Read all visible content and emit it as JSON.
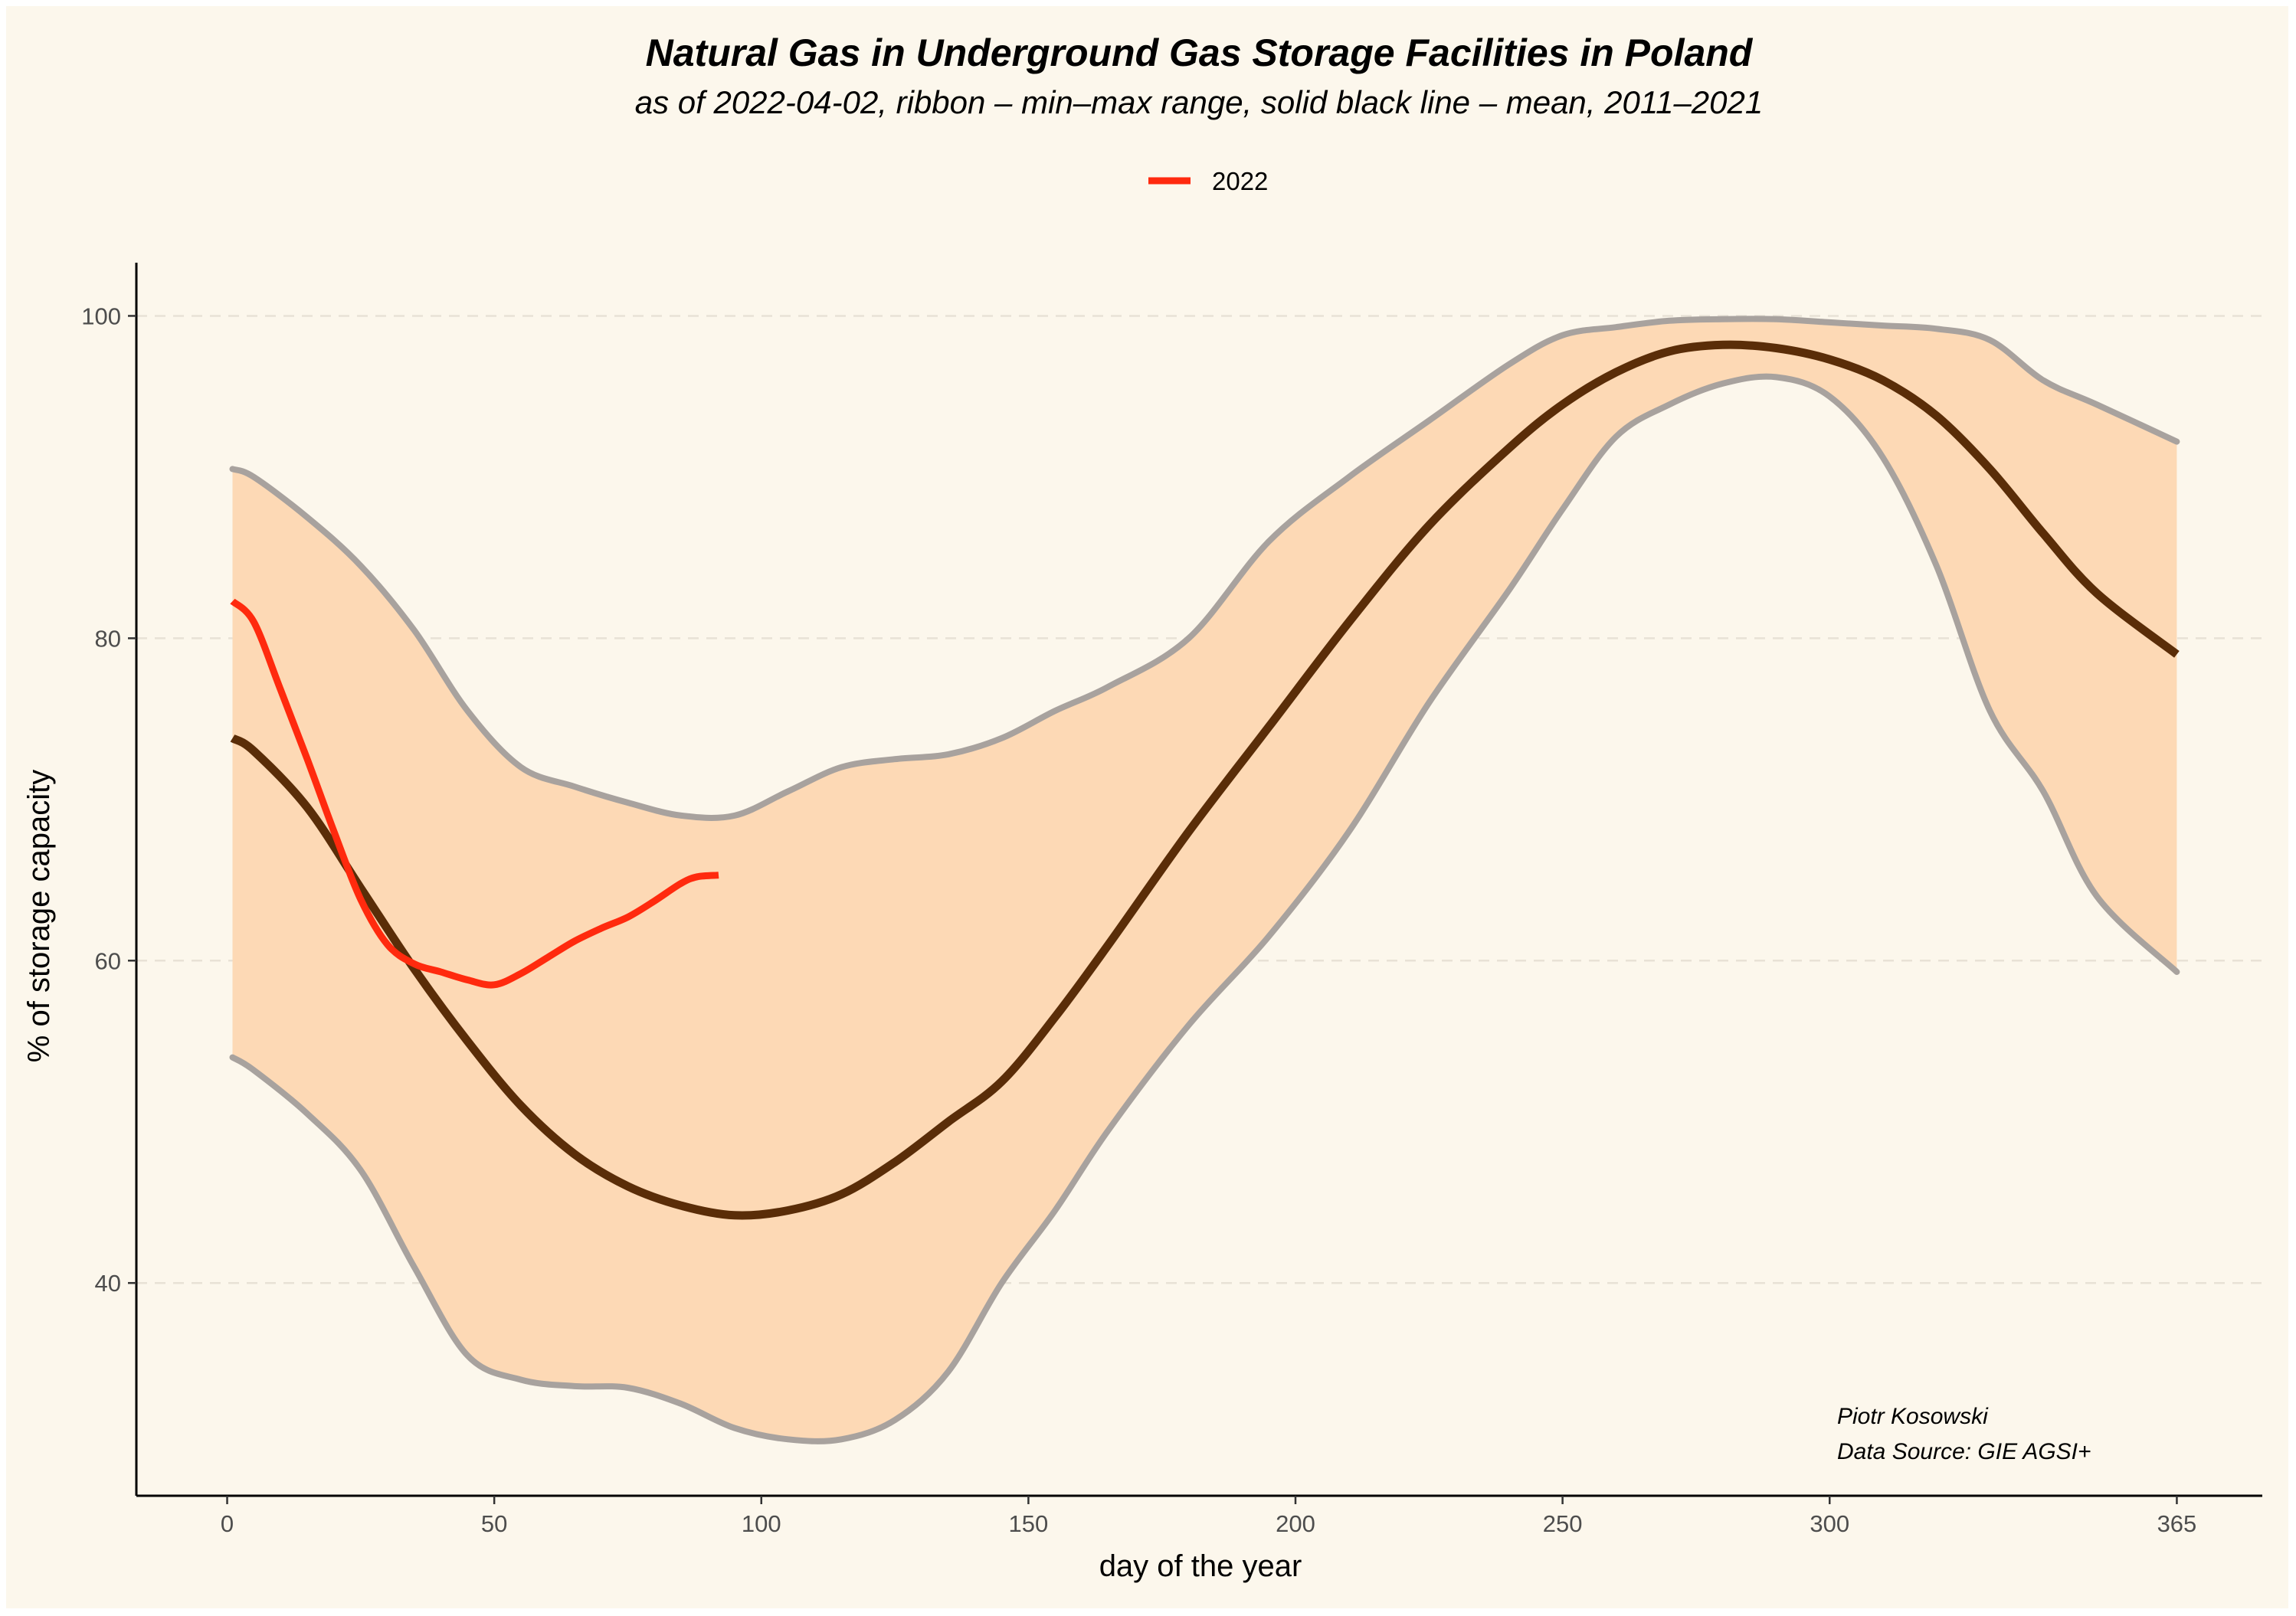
{
  "chart_data": {
    "type": "line",
    "title": "Natural Gas in Underground Gas Storage Facilities in Poland",
    "subtitle": "as of 2022-04-02, ribbon – min–max range, solid black line – mean, 2011–2021",
    "xlabel": "day of the year",
    "ylabel": "% of storage capacity",
    "xlim": [
      -17,
      381
    ],
    "ylim": [
      26.8,
      103.3
    ],
    "x_ticks": [
      0,
      50,
      100,
      150,
      200,
      250,
      300,
      365
    ],
    "y_ticks": [
      40,
      60,
      80,
      100
    ],
    "grid": "horizontal dashed",
    "legend": {
      "position": "top",
      "entries": [
        {
          "label": "2022",
          "color": "#ff2a0e"
        }
      ]
    },
    "caption": [
      "Piotr Kosowski",
      "Data Source: GIE AGSI+"
    ],
    "colors": {
      "ribbon_fill": "#fdd9b5",
      "ribbon_edge": "#a8a29e",
      "mean": "#5a2d08",
      "current": "#ff2a0e",
      "grid": "#e8e2d6",
      "background": "#fcf7ec"
    },
    "ribbon_max": {
      "x": [
        1,
        5,
        15,
        25,
        35,
        45,
        55,
        65,
        75,
        85,
        95,
        105,
        115,
        125,
        135,
        145,
        155,
        165,
        180,
        195,
        210,
        225,
        240,
        250,
        260,
        270,
        280,
        290,
        300,
        310,
        320,
        330,
        340,
        350,
        365
      ],
      "y": [
        90.5,
        90,
        87.5,
        84.5,
        80.5,
        75.5,
        72,
        70.8,
        69.8,
        69,
        69,
        70.5,
        72,
        72.5,
        72.8,
        73.8,
        75.5,
        77,
        80,
        86,
        90,
        93.5,
        97,
        98.8,
        99.3,
        99.7,
        99.8,
        99.8,
        99.6,
        99.4,
        99.2,
        98.5,
        96,
        94.5,
        92.2
      ]
    },
    "ribbon_min": {
      "x": [
        1,
        5,
        15,
        25,
        35,
        45,
        55,
        65,
        75,
        85,
        95,
        105,
        115,
        125,
        135,
        145,
        155,
        165,
        180,
        195,
        210,
        225,
        240,
        250,
        260,
        270,
        280,
        290,
        300,
        310,
        320,
        330,
        340,
        350,
        365
      ],
      "y": [
        54,
        53.2,
        50.5,
        47,
        41,
        35.5,
        34,
        33.6,
        33.5,
        32.5,
        31,
        30.3,
        30.3,
        31.5,
        34.5,
        40,
        44.5,
        49.5,
        56,
        61.5,
        68,
        76,
        83,
        88,
        92.5,
        94.5,
        95.8,
        96.2,
        95,
        91.2,
        84.5,
        75.5,
        70.5,
        64,
        59.3
      ]
    },
    "series": [
      {
        "name": "mean 2011–2021",
        "x": [
          1,
          5,
          15,
          25,
          35,
          45,
          55,
          65,
          75,
          85,
          95,
          105,
          115,
          125,
          135,
          145,
          155,
          165,
          180,
          195,
          210,
          225,
          240,
          250,
          260,
          270,
          280,
          290,
          300,
          310,
          320,
          330,
          340,
          350,
          365
        ],
        "y": [
          73.8,
          73,
          69.5,
          64.5,
          59.5,
          55,
          51,
          48,
          46,
          44.8,
          44.2,
          44.5,
          45.5,
          47.5,
          50,
          52.5,
          56.5,
          61,
          68,
          74.5,
          81,
          87,
          91.8,
          94.5,
          96.5,
          97.8,
          98.2,
          98,
          97.3,
          96,
          93.8,
          90.5,
          86.5,
          82.8,
          79
        ]
      },
      {
        "name": "2022",
        "x": [
          1,
          5,
          10,
          15,
          20,
          25,
          30,
          35,
          40,
          45,
          50,
          55,
          60,
          65,
          70,
          75,
          80,
          85,
          88,
          92
        ],
        "y": [
          82.3,
          81,
          76.8,
          72.5,
          68,
          63.8,
          61,
          59.8,
          59.3,
          58.8,
          58.5,
          59.2,
          60.2,
          61.2,
          62,
          62.7,
          63.7,
          64.8,
          65.2,
          65.3
        ]
      }
    ]
  }
}
